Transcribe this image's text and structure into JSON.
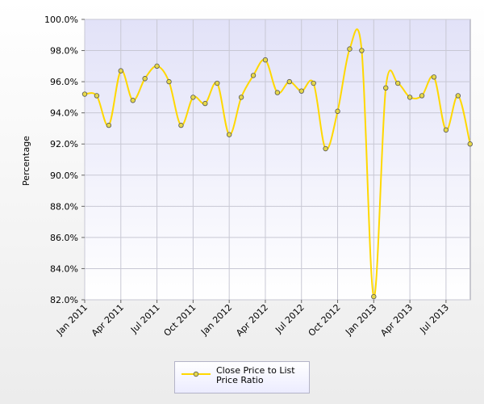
{
  "chart_data": {
    "type": "line",
    "title": "",
    "xlabel": "",
    "ylabel": "Percentage",
    "ylim": [
      82.0,
      100.0
    ],
    "y_ticks": [
      "100.0%",
      "98.0%",
      "96.0%",
      "94.0%",
      "92.0%",
      "90.0%",
      "88.0%",
      "86.0%",
      "84.0%",
      "82.0%"
    ],
    "x_ticks": [
      "Jan 2011",
      "Apr 2011",
      "Jul 2011",
      "Oct 2011",
      "Jan 2012",
      "Apr 2012",
      "Jul 2012",
      "Oct 2012",
      "Jan 2013",
      "Apr 2013",
      "Jul 2013"
    ],
    "categories": [
      "Jan 2011",
      "Feb 2011",
      "Mar 2011",
      "Apr 2011",
      "May 2011",
      "Jun 2011",
      "Jul 2011",
      "Aug 2011",
      "Sep 2011",
      "Oct 2011",
      "Nov 2011",
      "Dec 2011",
      "Jan 2012",
      "Feb 2012",
      "Mar 2012",
      "Apr 2012",
      "May 2012",
      "Jun 2012",
      "Jul 2012",
      "Aug 2012",
      "Sep 2012",
      "Oct 2012",
      "Nov 2012",
      "Dec 2012",
      "Jan 2013",
      "Feb 2013",
      "Mar 2013",
      "Apr 2013",
      "May 2013",
      "Jun 2013",
      "Jul 2013",
      "Aug 2013",
      "Sep 2013"
    ],
    "series": [
      {
        "name": "Close Price to List Price Ratio",
        "values": [
          95.2,
          95.1,
          93.2,
          96.7,
          94.8,
          96.2,
          97.0,
          96.0,
          93.2,
          95.0,
          94.6,
          95.9,
          92.6,
          95.0,
          96.4,
          97.4,
          95.3,
          96.0,
          95.4,
          95.9,
          91.7,
          94.1,
          98.1,
          98.0,
          82.2,
          95.6,
          95.9,
          95.0,
          95.1,
          96.3,
          92.9,
          95.1,
          92.0
        ],
        "color": "#ffd800"
      }
    ],
    "grid": true,
    "legend_position": "bottom-center"
  },
  "legend": {
    "label": "Close Price to List Price Ratio"
  }
}
